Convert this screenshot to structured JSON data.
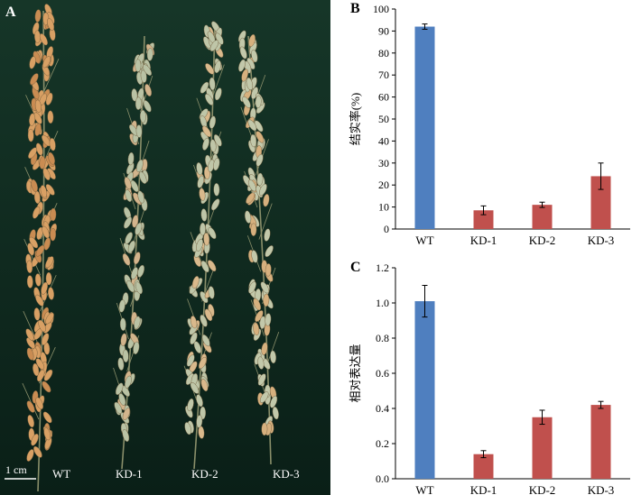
{
  "photo": {
    "panel_label": "A",
    "scale_bar": "1 cm",
    "labels": [
      "WT",
      "KD-1",
      "KD-2",
      "KD-3"
    ],
    "background_color": "#0f2a20"
  },
  "chart_data": [
    {
      "panel_label": "B",
      "type": "bar",
      "categories": [
        "WT",
        "KD-1",
        "KD-2",
        "KD-3"
      ],
      "values": [
        92,
        8.5,
        11,
        24
      ],
      "errors": [
        1.2,
        2.0,
        1.2,
        6.0
      ],
      "colors": [
        "#4f7fbf",
        "#c0504d",
        "#c0504d",
        "#c0504d"
      ],
      "ylabel": "结实率(%)",
      "xlabel": "",
      "ylim": [
        0,
        100
      ],
      "yticks": [
        "0",
        "10",
        "20",
        "30",
        "40",
        "50",
        "60",
        "70",
        "80",
        "90",
        "100"
      ],
      "grid": false
    },
    {
      "panel_label": "C",
      "type": "bar",
      "categories": [
        "WT",
        "KD-1",
        "KD-2",
        "KD-3"
      ],
      "values": [
        1.01,
        0.14,
        0.35,
        0.42
      ],
      "errors": [
        0.09,
        0.02,
        0.04,
        0.02
      ],
      "colors": [
        "#4f7fbf",
        "#c0504d",
        "#c0504d",
        "#c0504d"
      ],
      "ylabel": "相对表达量",
      "xlabel": "",
      "ylim": [
        0,
        1.2
      ],
      "yticks": [
        "0.0",
        "0.2",
        "0.4",
        "0.6",
        "0.8",
        "1.0",
        "1.2"
      ],
      "grid": false
    }
  ]
}
